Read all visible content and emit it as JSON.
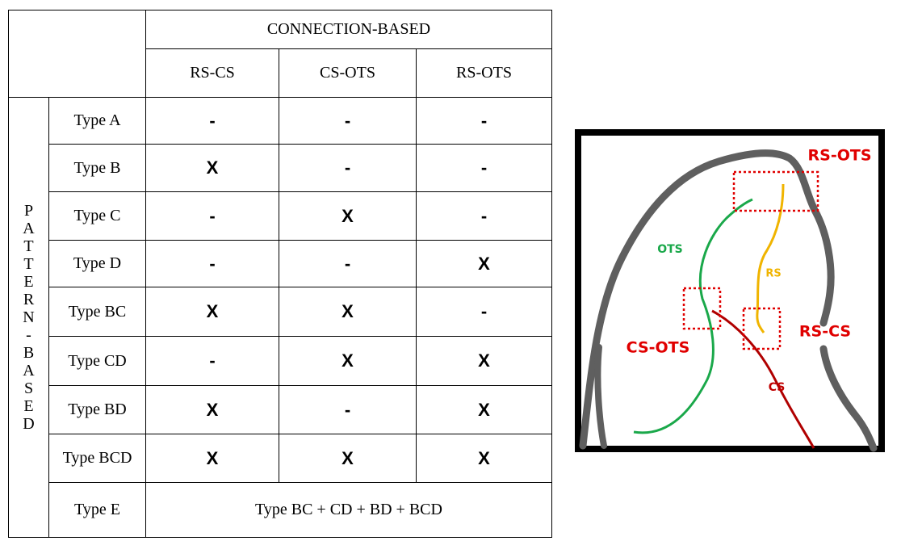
{
  "table": {
    "group_header": "CONNECTION-BASED",
    "columns": [
      "RS-CS",
      "CS-OTS",
      "RS-OTS"
    ],
    "row_group": "PATTERN-BASED",
    "rows": [
      {
        "label": "Type A",
        "cells": [
          "-",
          "-",
          "-"
        ]
      },
      {
        "label": "Type B",
        "cells": [
          "X",
          "-",
          "-"
        ]
      },
      {
        "label": "Type C",
        "cells": [
          "-",
          "X",
          "-"
        ]
      },
      {
        "label": "Type D",
        "cells": [
          "-",
          "-",
          "X"
        ]
      },
      {
        "label": "Type BC",
        "cells": [
          "X",
          "X",
          "-"
        ]
      },
      {
        "label": "Type CD",
        "cells": [
          "-",
          "X",
          "X"
        ]
      },
      {
        "label": "Type BD",
        "cells": [
          "X",
          "-",
          "X"
        ]
      },
      {
        "label": "Type BCD",
        "cells": [
          "X",
          "X",
          "X"
        ]
      }
    ],
    "summary_row": {
      "label": "Type E",
      "text": "Type BC + CD + BD + BCD"
    }
  },
  "diagram": {
    "labels": [
      "RS-OTS",
      "OTS",
      "RS",
      "CS-OTS",
      "RS-CS",
      "CS"
    ]
  }
}
